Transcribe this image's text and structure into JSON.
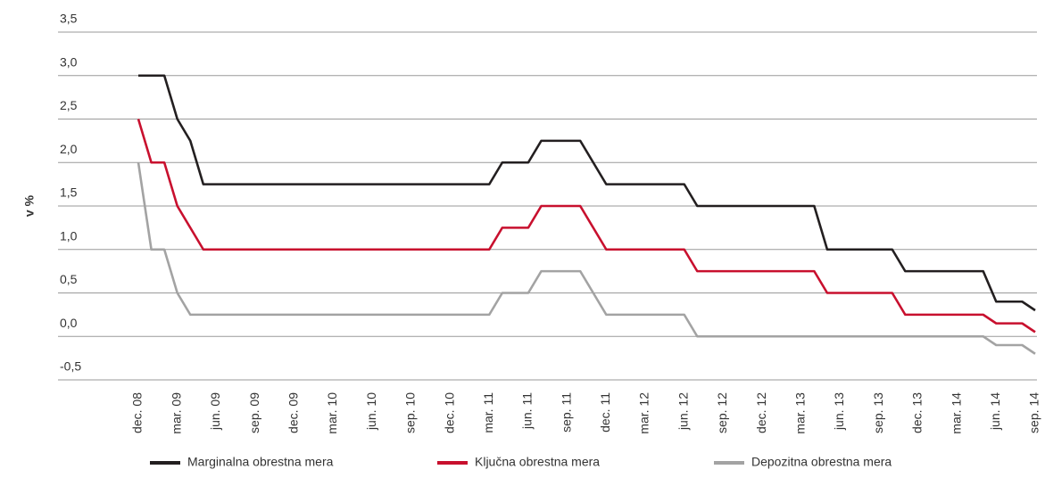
{
  "chart_data": {
    "type": "line",
    "ylabel": "v %",
    "categories": [
      "dec. 08",
      null,
      null,
      "mar. 09",
      null,
      null,
      "jun. 09",
      null,
      null,
      "sep. 09",
      null,
      null,
      "dec. 09",
      null,
      null,
      "mar. 10",
      null,
      null,
      "jun. 10",
      null,
      null,
      "sep. 10",
      null,
      null,
      "dec. 10",
      null,
      null,
      "mar. 11",
      null,
      null,
      "jun. 11",
      null,
      null,
      "sep. 11",
      null,
      null,
      "dec. 11",
      null,
      null,
      "mar. 12",
      null,
      null,
      "jun. 12",
      null,
      null,
      "sep. 12",
      null,
      null,
      "dec. 12",
      null,
      null,
      "mar. 13",
      null,
      null,
      "jun. 13",
      null,
      null,
      "sep. 13",
      null,
      null,
      "dec. 13",
      null,
      null,
      "mar. 14",
      null,
      null,
      "jun. 14",
      null,
      null,
      "sep. 14"
    ],
    "series": [
      {
        "name": "Marginalna obrestna mera",
        "color": "#231f20",
        "values": [
          3,
          3,
          3,
          2.5,
          2.25,
          1.75,
          1.75,
          1.75,
          1.75,
          1.75,
          1.75,
          1.75,
          1.75,
          1.75,
          1.75,
          1.75,
          1.75,
          1.75,
          1.75,
          1.75,
          1.75,
          1.75,
          1.75,
          1.75,
          1.75,
          1.75,
          1.75,
          1.75,
          2,
          2,
          2,
          2.25,
          2.25,
          2.25,
          2.25,
          2,
          1.75,
          1.75,
          1.75,
          1.75,
          1.75,
          1.75,
          1.75,
          1.5,
          1.5,
          1.5,
          1.5,
          1.5,
          1.5,
          1.5,
          1.5,
          1.5,
          1.5,
          1,
          1,
          1,
          1,
          1,
          1,
          0.75,
          0.75,
          0.75,
          0.75,
          0.75,
          0.75,
          0.75,
          0.4,
          0.4,
          0.4,
          0.3
        ]
      },
      {
        "name": "Ključna obrestna mera",
        "color": "#c8102e",
        "values": [
          2.5,
          2,
          2,
          1.5,
          1.25,
          1,
          1,
          1,
          1,
          1,
          1,
          1,
          1,
          1,
          1,
          1,
          1,
          1,
          1,
          1,
          1,
          1,
          1,
          1,
          1,
          1,
          1,
          1,
          1.25,
          1.25,
          1.25,
          1.5,
          1.5,
          1.5,
          1.5,
          1.25,
          1,
          1,
          1,
          1,
          1,
          1,
          1,
          0.75,
          0.75,
          0.75,
          0.75,
          0.75,
          0.75,
          0.75,
          0.75,
          0.75,
          0.75,
          0.5,
          0.5,
          0.5,
          0.5,
          0.5,
          0.5,
          0.25,
          0.25,
          0.25,
          0.25,
          0.25,
          0.25,
          0.25,
          0.15,
          0.15,
          0.15,
          0.05
        ]
      },
      {
        "name": "Depozitna obrestna mera",
        "color": "#a3a3a3",
        "values": [
          2,
          1,
          1,
          0.5,
          0.25,
          0.25,
          0.25,
          0.25,
          0.25,
          0.25,
          0.25,
          0.25,
          0.25,
          0.25,
          0.25,
          0.25,
          0.25,
          0.25,
          0.25,
          0.25,
          0.25,
          0.25,
          0.25,
          0.25,
          0.25,
          0.25,
          0.25,
          0.25,
          0.5,
          0.5,
          0.5,
          0.75,
          0.75,
          0.75,
          0.75,
          0.5,
          0.25,
          0.25,
          0.25,
          0.25,
          0.25,
          0.25,
          0.25,
          0,
          0,
          0,
          0,
          0,
          0,
          0,
          0,
          0,
          0,
          0,
          0,
          0,
          0,
          0,
          0,
          0,
          0,
          0,
          0,
          0,
          0,
          0,
          -0.1,
          -0.1,
          -0.1,
          -0.2
        ]
      }
    ],
    "ylim": [
      -0.5,
      3.5
    ],
    "yticks": [
      {
        "value": -0.5,
        "label": "-0,5"
      },
      {
        "value": 0,
        "label": "0,0"
      },
      {
        "value": 0.5,
        "label": "0,5"
      },
      {
        "value": 1,
        "label": "1,0"
      },
      {
        "value": 1.5,
        "label": "1,5"
      },
      {
        "value": 2,
        "label": "2,0"
      },
      {
        "value": 2.5,
        "label": "2,5"
      },
      {
        "value": 3,
        "label": "3,0"
      },
      {
        "value": 3.5,
        "label": "3,5"
      }
    ],
    "grid": true
  }
}
